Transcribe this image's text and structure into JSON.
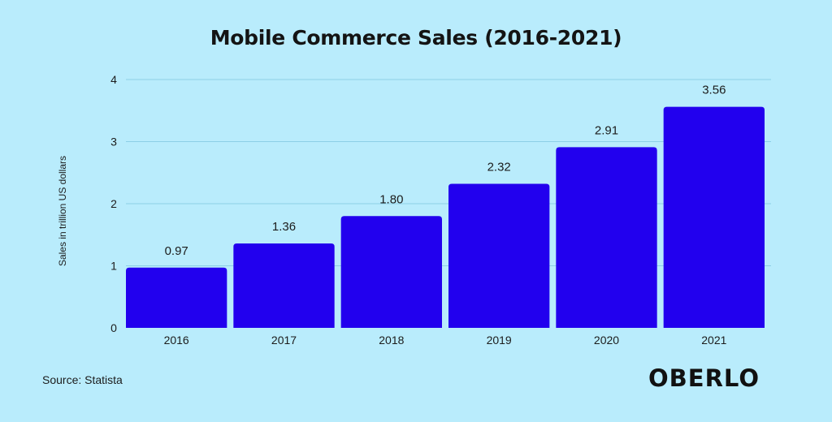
{
  "chart_data": {
    "type": "bar",
    "title": "Mobile Commerce Sales (2016-2021)",
    "ylabel": "Sales in trillion US dollars",
    "xlabel": "",
    "categories": [
      "2016",
      "2017",
      "2018",
      "2019",
      "2020",
      "2021"
    ],
    "values": [
      0.97,
      1.36,
      1.8,
      2.32,
      2.91,
      3.56
    ],
    "value_labels": [
      "0.97",
      "1.36",
      "1.80",
      "2.32",
      "2.91",
      "3.56"
    ],
    "ylim": [
      0,
      4
    ],
    "yticks": [
      "0",
      "1",
      "2",
      "3",
      "4"
    ],
    "grid": true,
    "legend": "none",
    "bar_color": "#2200ee",
    "grid_color": "#8dcfe6"
  },
  "footer": {
    "source": "Source: Statista",
    "brand": "OBERLO"
  },
  "colors": {
    "background": "#b9ecfc"
  }
}
